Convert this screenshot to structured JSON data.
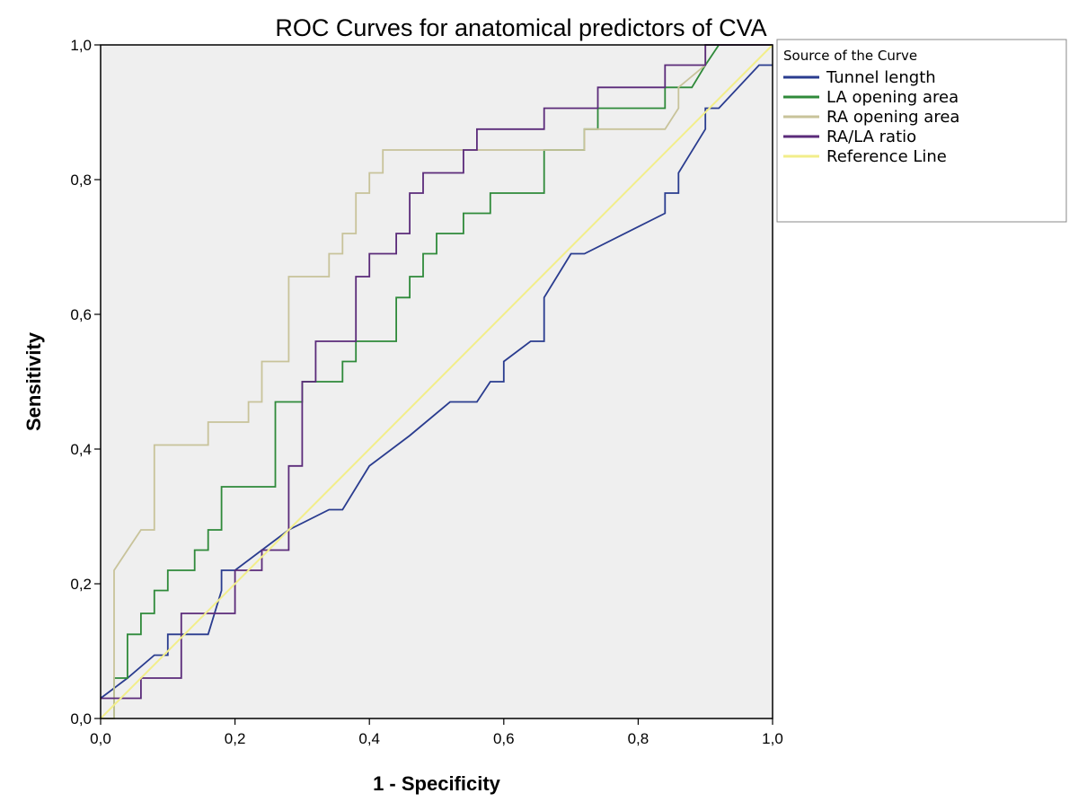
{
  "chart_data": {
    "type": "line",
    "title": "ROC Curves for anatomical predictors of CVA",
    "xlabel": "1 - Specificity",
    "ylabel": "Sensitivity",
    "xlim": [
      0,
      1
    ],
    "ylim": [
      0,
      1
    ],
    "xticks": [
      "0,0",
      "0,2",
      "0,4",
      "0,6",
      "0,8",
      "1,0"
    ],
    "yticks": [
      "0,0",
      "0,2",
      "0,4",
      "0,6",
      "0,8",
      "1,0"
    ],
    "grid": false,
    "legend_position": "outside-right-top",
    "legend_title": "Source of the Curve",
    "series": [
      {
        "name": "Tunnel length",
        "color": "#2a3c8f",
        "x": [
          0.0,
          0.04,
          0.08,
          0.1,
          0.1,
          0.16,
          0.18,
          0.18,
          0.2,
          0.24,
          0.28,
          0.34,
          0.36,
          0.4,
          0.46,
          0.52,
          0.56,
          0.58,
          0.58,
          0.6,
          0.6,
          0.64,
          0.66,
          0.66,
          0.7,
          0.72,
          0.84,
          0.84,
          0.86,
          0.86,
          0.9,
          0.9,
          0.92,
          0.98,
          1.0
        ],
        "y": [
          0.03,
          0.06,
          0.094,
          0.094,
          0.125,
          0.125,
          0.19,
          0.22,
          0.22,
          0.25,
          0.28,
          0.31,
          0.31,
          0.375,
          0.42,
          0.47,
          0.47,
          0.5,
          0.5,
          0.5,
          0.53,
          0.56,
          0.56,
          0.625,
          0.69,
          0.69,
          0.75,
          0.78,
          0.78,
          0.81,
          0.875,
          0.906,
          0.906,
          0.97,
          0.97
        ]
      },
      {
        "name": "LA opening area",
        "color": "#2f8a3a",
        "x": [
          0.02,
          0.02,
          0.04,
          0.04,
          0.06,
          0.06,
          0.08,
          0.08,
          0.1,
          0.1,
          0.14,
          0.14,
          0.16,
          0.16,
          0.18,
          0.18,
          0.26,
          0.26,
          0.3,
          0.3,
          0.36,
          0.36,
          0.38,
          0.38,
          0.44,
          0.44,
          0.46,
          0.46,
          0.48,
          0.48,
          0.5,
          0.5,
          0.54,
          0.54,
          0.58,
          0.58,
          0.6,
          0.6,
          0.66,
          0.66,
          0.7,
          0.7,
          0.72,
          0.72,
          0.74,
          0.74,
          0.84,
          0.84,
          0.88,
          0.88,
          0.9,
          0.92
        ],
        "y": [
          0.0,
          0.06,
          0.06,
          0.125,
          0.125,
          0.156,
          0.156,
          0.19,
          0.19,
          0.22,
          0.22,
          0.25,
          0.25,
          0.28,
          0.28,
          0.344,
          0.344,
          0.47,
          0.47,
          0.5,
          0.5,
          0.53,
          0.53,
          0.56,
          0.56,
          0.625,
          0.625,
          0.656,
          0.656,
          0.69,
          0.69,
          0.72,
          0.72,
          0.75,
          0.75,
          0.78,
          0.78,
          0.78,
          0.78,
          0.844,
          0.844,
          0.844,
          0.844,
          0.875,
          0.875,
          0.906,
          0.906,
          0.937,
          0.937,
          0.937,
          0.97,
          1.0
        ]
      },
      {
        "name": "RA opening area",
        "color": "#c8c39a",
        "x": [
          0.0,
          0.02,
          0.02,
          0.04,
          0.06,
          0.08,
          0.08,
          0.16,
          0.16,
          0.22,
          0.22,
          0.24,
          0.24,
          0.28,
          0.28,
          0.34,
          0.34,
          0.36,
          0.36,
          0.38,
          0.38,
          0.4,
          0.4,
          0.42,
          0.42,
          0.72,
          0.72,
          0.84,
          0.86,
          0.86,
          0.9,
          0.9,
          0.94,
          1.0
        ],
        "y": [
          0.0,
          0.0,
          0.22,
          0.25,
          0.28,
          0.28,
          0.406,
          0.406,
          0.44,
          0.44,
          0.47,
          0.47,
          0.53,
          0.53,
          0.656,
          0.656,
          0.69,
          0.69,
          0.72,
          0.72,
          0.78,
          0.78,
          0.81,
          0.81,
          0.844,
          0.844,
          0.875,
          0.875,
          0.906,
          0.937,
          0.97,
          1.0,
          1.0,
          1.0
        ]
      },
      {
        "name": "RA/LA ratio",
        "color": "#5b2b7a",
        "x": [
          0.0,
          0.04,
          0.06,
          0.06,
          0.12,
          0.12,
          0.2,
          0.2,
          0.24,
          0.24,
          0.28,
          0.28,
          0.3,
          0.3,
          0.32,
          0.32,
          0.38,
          0.38,
          0.4,
          0.4,
          0.44,
          0.44,
          0.46,
          0.46,
          0.48,
          0.48,
          0.54,
          0.54,
          0.56,
          0.56,
          0.66,
          0.66,
          0.74,
          0.74,
          0.84,
          0.84,
          0.9,
          0.9,
          1.0
        ],
        "y": [
          0.03,
          0.03,
          0.03,
          0.06,
          0.06,
          0.156,
          0.156,
          0.22,
          0.22,
          0.25,
          0.25,
          0.375,
          0.375,
          0.5,
          0.5,
          0.56,
          0.56,
          0.656,
          0.656,
          0.69,
          0.69,
          0.72,
          0.72,
          0.78,
          0.78,
          0.81,
          0.81,
          0.844,
          0.844,
          0.875,
          0.875,
          0.906,
          0.906,
          0.937,
          0.937,
          0.97,
          0.97,
          1.0,
          1.0
        ]
      },
      {
        "name": "Reference Line",
        "color": "#f2ee8a",
        "x": [
          0.0,
          1.0
        ],
        "y": [
          0.0,
          1.0
        ]
      }
    ]
  }
}
